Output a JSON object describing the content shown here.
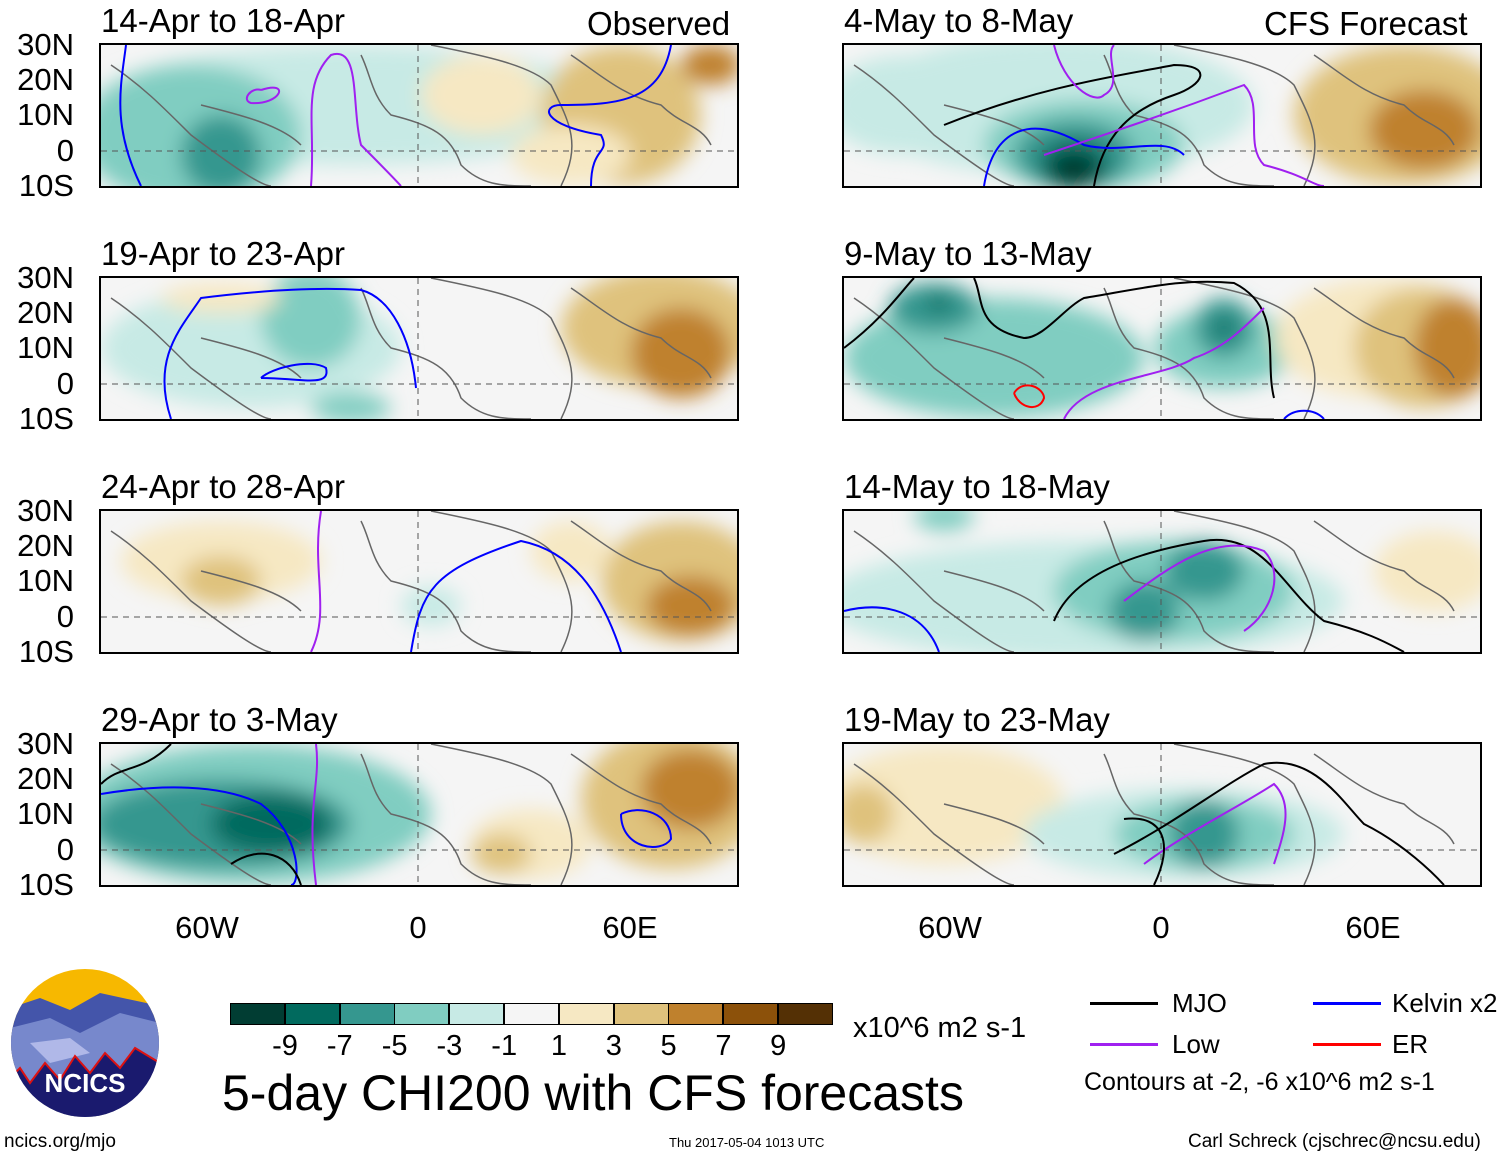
{
  "headers": {
    "left": "Observed",
    "right": "CFS Forecast"
  },
  "panels": {
    "left": [
      {
        "title": "14-Apr to 18-Apr"
      },
      {
        "title": "19-Apr to 23-Apr"
      },
      {
        "title": "24-Apr to 28-Apr"
      },
      {
        "title": "29-Apr to 3-May"
      }
    ],
    "right": [
      {
        "title": "4-May to 8-May"
      },
      {
        "title": "9-May to 13-May"
      },
      {
        "title": "14-May to 18-May"
      },
      {
        "title": "19-May to 23-May"
      }
    ]
  },
  "lat_labels": [
    "30N",
    "20N",
    "10N",
    "0",
    "10S"
  ],
  "lon_labels": [
    "60W",
    "0",
    "60E"
  ],
  "colorbar": {
    "colors": [
      "#013d33",
      "#016a5e",
      "#35978f",
      "#80cdc1",
      "#c7eae5",
      "#f5f5f5",
      "#f6e8c3",
      "#dfc27d",
      "#bf812d",
      "#8c510a",
      "#543005"
    ],
    "labels": [
      "-9",
      "-7",
      "-5",
      "-3",
      "-1",
      "1",
      "3",
      "5",
      "7",
      "9"
    ],
    "units": "x10^6 m2 s-1"
  },
  "title": "5-day CHI200 with CFS forecasts",
  "legend": {
    "items": [
      {
        "label": "MJO",
        "color": "#000000"
      },
      {
        "label": "Kelvin x2",
        "color": "#0000ff"
      },
      {
        "label": "Low",
        "color": "#a020f0"
      },
      {
        "label": "ER",
        "color": "#ff0000"
      }
    ],
    "note": "Contours at -2, -6 x10^6 m2 s-1"
  },
  "logo": {
    "text": "NCICS"
  },
  "footer": {
    "url": "ncics.org/mjo",
    "timestamp": "Thu 2017-05-04 1013 UTC",
    "credit": "Carl Schreck (cjschrec@ncsu.edu)"
  }
}
